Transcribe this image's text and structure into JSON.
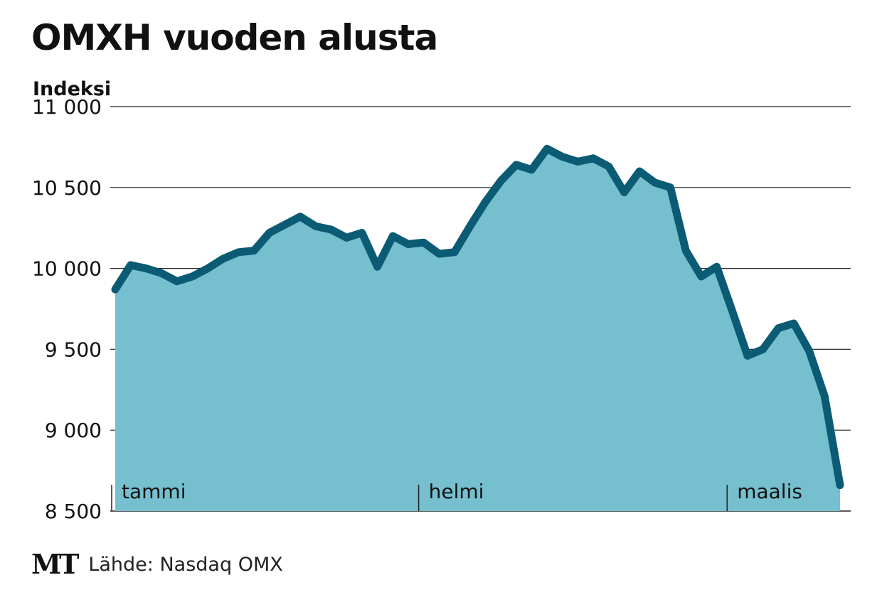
{
  "title": "OMXH vuoden alusta",
  "source": "Lähde: Nasdaq OMX",
  "logo": "MT",
  "colors": {
    "area_fill": "#76bfce",
    "line": "#0b5b74",
    "grid": "#222222"
  },
  "chart_data": {
    "type": "area",
    "title": "OMXH vuoden alusta",
    "ylabel": "Indeksi",
    "xlabel": "",
    "ylim": [
      8500,
      11000
    ],
    "yticks": [
      11000,
      10500,
      10000,
      9500,
      9000,
      8500
    ],
    "ytick_labels": [
      "11 000",
      "10 500",
      "10 000",
      "9 500",
      "9 000",
      "8 500"
    ],
    "grid": true,
    "legend": "none",
    "months": [
      {
        "label": "tammi",
        "index": 0
      },
      {
        "label": "helmi",
        "index": 20
      },
      {
        "label": "maalis",
        "index": 40
      }
    ],
    "series": [
      {
        "values": [
          9870,
          10020,
          10000,
          9970,
          9920,
          9950,
          10000,
          10060,
          10100,
          10110,
          10220,
          10270,
          10320,
          10260,
          10240,
          10190,
          10220,
          10010,
          10200,
          10150,
          10160,
          10090,
          10100,
          10260,
          10410,
          10540,
          10640,
          10610,
          10740,
          10690,
          10660,
          10680,
          10630,
          10470,
          10600,
          10530,
          10500,
          10110,
          9950,
          10010,
          9740,
          9460,
          9500,
          9630,
          9660,
          9490,
          9210,
          8660
        ]
      }
    ]
  }
}
